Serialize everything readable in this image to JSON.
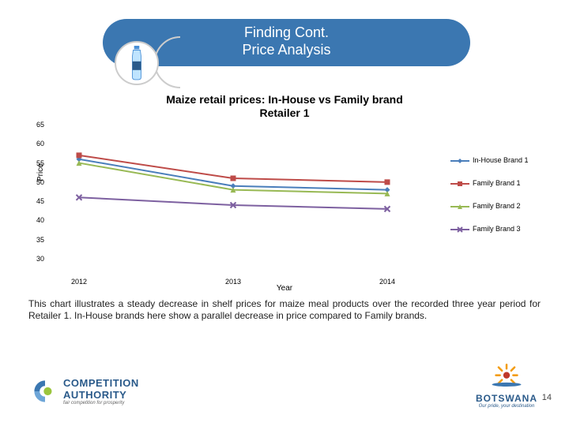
{
  "header": {
    "line1": "Finding Cont.",
    "line2": "Price Analysis"
  },
  "chart": {
    "type": "line",
    "title_line1": "Maize retail prices: In-House vs Family brand",
    "title_line2": "Retailer 1",
    "xlabel": "Year",
    "ylabel": "Price",
    "xticks": [
      "2012",
      "2013",
      "2014"
    ],
    "ylim": [
      30,
      65
    ],
    "ytick_step": 5,
    "yticks": [
      30,
      35,
      40,
      45,
      50,
      55,
      60,
      65
    ],
    "background_color": "#ffffff",
    "series": [
      {
        "name": "In-House Brand 1",
        "color": "#4a7ebb",
        "marker": "diamond",
        "values": [
          56,
          49,
          48
        ]
      },
      {
        "name": "Family Brand 1",
        "color": "#be4b48",
        "marker": "square",
        "values": [
          57,
          51,
          50
        ]
      },
      {
        "name": "Family Brand 2",
        "color": "#98b954",
        "marker": "triangle",
        "values": [
          55,
          48,
          47
        ]
      },
      {
        "name": "Family Brand 3",
        "color": "#7d60a0",
        "marker": "x",
        "values": [
          46,
          44,
          43
        ]
      }
    ],
    "line_width": 2,
    "marker_size": 6,
    "title_fontsize": 14,
    "tick_fontsize": 9,
    "legend_fontsize": 9
  },
  "description": "This chart illustrates a steady decrease in shelf prices for maize meal products over the recorded three year period for Retailer 1. In-House brands here show a parallel decrease in price compared to Family brands.",
  "logos": {
    "left_name": "COMPETITION AUTHORITY",
    "left_tagline": "fair competition for prosperity",
    "right_name": "BOTSWANA",
    "right_tagline": "Our pride, your destination"
  },
  "page_number": "14"
}
